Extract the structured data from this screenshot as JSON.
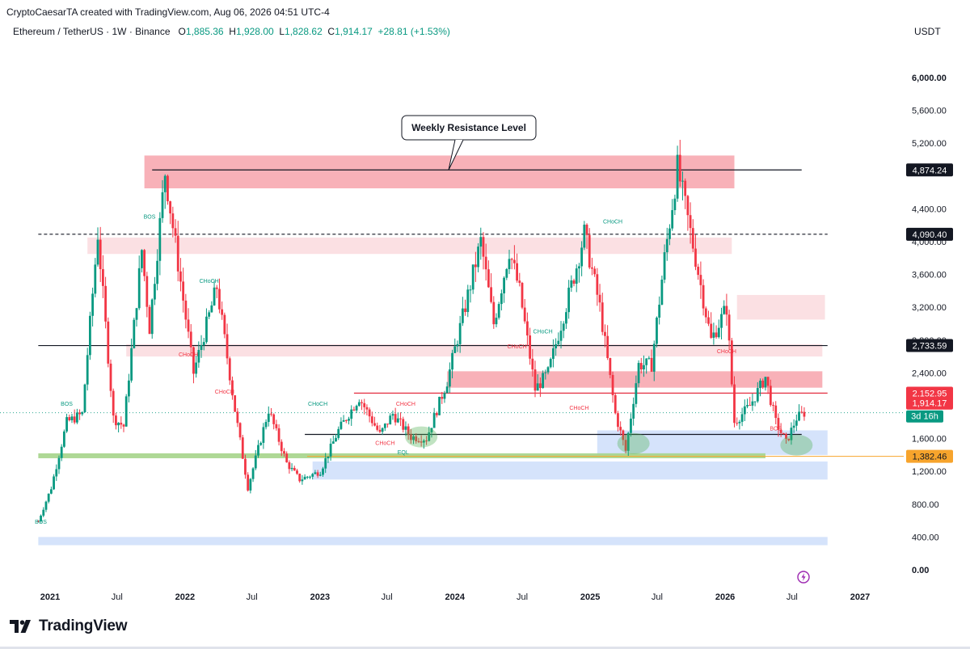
{
  "header": {
    "attribution": "CryptoCaesarTA created with TradingView.com, Aug 06, 2026 04:51 UTC-4",
    "symbol": "Ethereum / TetherUS · 1W · Binance",
    "o_label": "O",
    "o_value": "1,885.36",
    "h_label": "H",
    "h_value": "1,928.00",
    "l_label": "L",
    "l_value": "1,828.62",
    "c_label": "C",
    "c_value": "1,914.17",
    "change": "+28.81 (+1.53%)",
    "currency": "USDT"
  },
  "footer": {
    "brand": "TradingView"
  },
  "chart_data": {
    "type": "candlestick",
    "xlabel": "",
    "ylabel": "",
    "ylim": [
      0,
      6400
    ],
    "yticks": [
      "6,000.00",
      "5,600.00",
      "5,200.00",
      "4,400.00",
      "4,000.00",
      "3,600.00",
      "3,200.00",
      "2,800.00",
      "2,400.00",
      "1,600.00",
      "1,200.00",
      "800.00",
      "400.00",
      "0.00"
    ],
    "ytick_values": [
      6000,
      5600,
      5200,
      4400,
      4000,
      3600,
      3200,
      2800,
      2400,
      1600,
      1200,
      800,
      400,
      0
    ],
    "xticks": [
      "2021",
      "Jul",
      "2022",
      "Jul",
      "2023",
      "Jul",
      "2024",
      "Jul",
      "2025",
      "Jul",
      "2026",
      "Jul",
      "2027"
    ],
    "xtick_dates": [
      "2021-01-01",
      "2021-07-01",
      "2022-01-01",
      "2022-07-01",
      "2023-01-01",
      "2023-07-01",
      "2024-01-01",
      "2024-07-01",
      "2025-01-01",
      "2025-07-01",
      "2026-01-01",
      "2026-07-01",
      "2027-01-01"
    ],
    "price_path": [
      [
        "2020-11-30",
        590
      ],
      [
        "2021-01-04",
        1000
      ],
      [
        "2021-02-15",
        1800
      ],
      [
        "2021-03-29",
        1900
      ],
      [
        "2021-05-10",
        4100
      ],
      [
        "2021-06-21",
        1850
      ],
      [
        "2021-07-19",
        1750
      ],
      [
        "2021-09-06",
        3900
      ],
      [
        "2021-09-27",
        2950
      ],
      [
        "2021-11-08",
        4850
      ],
      [
        "2022-01-24",
        2400
      ],
      [
        "2022-03-28",
        3450
      ],
      [
        "2022-05-16",
        1950
      ],
      [
        "2022-06-20",
        1000
      ],
      [
        "2022-08-15",
        1950
      ],
      [
        "2022-10-03",
        1300
      ],
      [
        "2022-11-07",
        1100
      ],
      [
        "2023-01-02",
        1200
      ],
      [
        "2023-02-20",
        1700
      ],
      [
        "2023-04-17",
        2100
      ],
      [
        "2023-06-12",
        1650
      ],
      [
        "2023-07-17",
        1900
      ],
      [
        "2023-09-04",
        1620
      ],
      [
        "2023-10-16",
        1600
      ],
      [
        "2023-12-11",
        2300
      ],
      [
        "2024-03-11",
        4000
      ],
      [
        "2024-04-15",
        3000
      ],
      [
        "2024-05-27",
        3900
      ],
      [
        "2024-06-24",
        3400
      ],
      [
        "2024-08-05",
        2200
      ],
      [
        "2024-09-09",
        2400
      ],
      [
        "2024-11-25",
        3700
      ],
      [
        "2024-12-16",
        4100
      ],
      [
        "2025-01-27",
        3200
      ],
      [
        "2025-03-10",
        1900
      ],
      [
        "2025-04-07",
        1450
      ],
      [
        "2025-05-12",
        2500
      ],
      [
        "2025-06-16",
        2500
      ],
      [
        "2025-07-21",
        3800
      ],
      [
        "2025-08-25",
        4900
      ],
      [
        "2025-10-13",
        3800
      ],
      [
        "2025-11-24",
        2800
      ],
      [
        "2026-01-05",
        3200
      ],
      [
        "2026-01-26",
        1800
      ],
      [
        "2026-03-09",
        2000
      ],
      [
        "2026-04-20",
        2350
      ],
      [
        "2026-05-18",
        1800
      ],
      [
        "2026-06-15",
        1550
      ],
      [
        "2026-07-13",
        1850
      ],
      [
        "2026-08-03",
        1914
      ]
    ],
    "levels": [
      {
        "label": "4,874.24",
        "value": 4874.24,
        "style": "solid"
      },
      {
        "label": "4,090.40",
        "value": 4090.4,
        "style": "dashed"
      },
      {
        "label": "2,733.59",
        "value": 2733.59,
        "style": "solid"
      },
      {
        "label": "2,152.95",
        "value": 2152.95,
        "style": "red"
      },
      {
        "label": "1,914.17",
        "value": 1914.17,
        "style": "last"
      },
      {
        "label": "1,382.46",
        "value": 1382.46,
        "style": "orange"
      }
    ],
    "countdown": "3d 16h",
    "zones": [
      {
        "from": "2021-09-13",
        "to": "2026-01-26",
        "low": 4650,
        "high": 5050,
        "color": "#f7a9b0"
      },
      {
        "from": "2021-04-12",
        "to": "2026-01-19",
        "low": 3850,
        "high": 4050,
        "color": "#fbdde0"
      },
      {
        "from": "2026-02-02",
        "to": "2026-09-28",
        "low": 3050,
        "high": 3350,
        "color": "#fbdde0"
      },
      {
        "from": "2021-07-26",
        "to": "2026-09-21",
        "low": 2600,
        "high": 2750,
        "color": "#fbdde0"
      },
      {
        "from": "2023-12-11",
        "to": "2026-09-21",
        "low": 2220,
        "high": 2420,
        "color": "#f7a9b0"
      },
      {
        "from": "2025-01-20",
        "to": "2026-10-05",
        "low": 1400,
        "high": 1700,
        "color": "#d0e0fb"
      },
      {
        "from": "2022-12-12",
        "to": "2026-10-05",
        "low": 1100,
        "high": 1320,
        "color": "#d0e0fb"
      },
      {
        "from": "2020-11-30",
        "to": "2026-10-05",
        "low": 300,
        "high": 400,
        "color": "#d0e0fb"
      },
      {
        "from": "2020-11-30",
        "to": "2026-04-20",
        "low": 1360,
        "high": 1420,
        "color": "#a5d48a"
      }
    ],
    "lines": [
      {
        "from": "2021-10-04",
        "to": "2026-07-27",
        "value": 4874.24
      },
      {
        "from": "2020-11-30",
        "to": "2026-10-05",
        "value": 4090.4,
        "dashed": true
      },
      {
        "from": "2020-11-30",
        "to": "2026-10-05",
        "value": 2733.59
      },
      {
        "from": "2023-04-03",
        "to": "2026-10-05",
        "value": 2152.95,
        "red": true
      },
      {
        "from": "2022-11-21",
        "to": "2026-07-27",
        "value": 1650
      }
    ],
    "annotations": [
      {
        "text": "Weekly Resistance Level",
        "type": "callout"
      },
      {
        "text": "BOS",
        "date": "2021-09-27",
        "value": 4280,
        "color": "#089981"
      },
      {
        "text": "BOS",
        "date": "2021-02-15",
        "value": 2000,
        "color": "#089981"
      },
      {
        "text": "BOS",
        "date": "2020-12-07",
        "value": 560,
        "color": "#089981"
      },
      {
        "text": "CHoCH",
        "date": "2022-03-07",
        "value": 3500,
        "color": "#089981"
      },
      {
        "text": "CHoCH",
        "date": "2022-01-10",
        "value": 2600,
        "color": "#f23645"
      },
      {
        "text": "CHoCH",
        "date": "2022-04-18",
        "value": 2150,
        "color": "#f23645"
      },
      {
        "text": "CHoCH",
        "date": "2022-12-26",
        "value": 2000,
        "color": "#089981"
      },
      {
        "text": "CHoCH",
        "date": "2023-08-21",
        "value": 2000,
        "color": "#f23645"
      },
      {
        "text": "CHoCH",
        "date": "2023-06-26",
        "value": 1520,
        "color": "#f23645"
      },
      {
        "text": "EQL",
        "date": "2023-08-14",
        "value": 1410,
        "color": "#089981"
      },
      {
        "text": "CHoCH",
        "date": "2024-06-17",
        "value": 2700,
        "color": "#f23645"
      },
      {
        "text": "CHoCH",
        "date": "2024-08-26",
        "value": 2880,
        "color": "#089981"
      },
      {
        "text": "CHoCH",
        "date": "2025-03-03",
        "value": 4220,
        "color": "#089981"
      },
      {
        "text": "CHoCH",
        "date": "2024-12-02",
        "value": 1950,
        "color": "#f23645"
      },
      {
        "text": "CHoCH",
        "date": "2026-01-05",
        "value": 2640,
        "color": "#f23645"
      },
      {
        "text": "BOS",
        "date": "2026-05-18",
        "value": 1700,
        "color": "#f23645"
      }
    ],
    "highlights": [
      {
        "date": "2023-10-02",
        "value": 1620
      },
      {
        "date": "2025-04-28",
        "value": 1540
      },
      {
        "date": "2026-07-13",
        "value": 1520
      }
    ],
    "colors": {
      "up": "#089981",
      "down": "#f23645",
      "grid": "none"
    },
    "grid": false,
    "legend": "none"
  }
}
